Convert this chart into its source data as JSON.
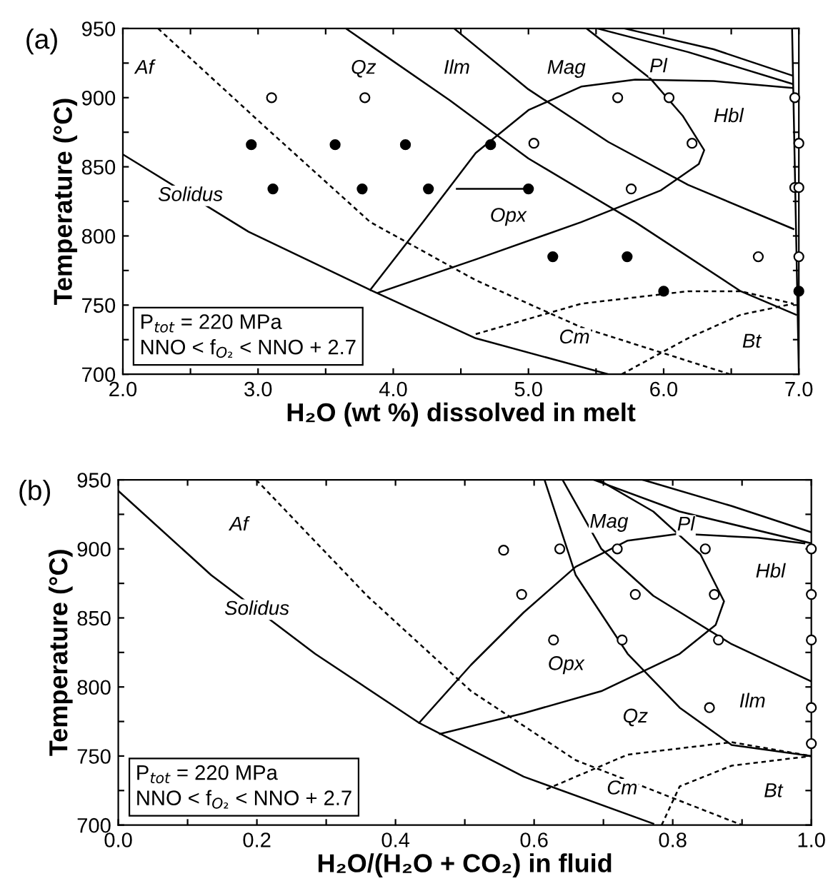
{
  "chart_data": [
    {
      "type": "line",
      "title": "(a)",
      "xlabel": "H₂O (wt %) dissolved in melt",
      "ylabel": "Temperature (°C)",
      "xlim": [
        2.0,
        7.0
      ],
      "xticks": [
        {
          "value": 2.0,
          "label": "2.0"
        },
        {
          "value": 2.5,
          "label": null
        },
        {
          "value": 3.0,
          "label": "3.0"
        },
        {
          "value": 3.5,
          "label": null
        },
        {
          "value": 4.0,
          "label": "4.0"
        },
        {
          "value": 4.5,
          "label": null
        },
        {
          "value": 5.0,
          "label": "5.0"
        },
        {
          "value": 5.5,
          "label": null
        },
        {
          "value": 6.0,
          "label": "6.0"
        },
        {
          "value": 6.5,
          "label": null
        },
        {
          "value": 7.0,
          "label": "7.0"
        }
      ],
      "ylim": [
        700,
        950
      ],
      "yticks": [
        700,
        {
          "value": 725,
          "label": null
        },
        750,
        {
          "value": 775,
          "label": null
        },
        800,
        {
          "value": 825,
          "label": null
        },
        850,
        {
          "value": 875,
          "label": null
        },
        900,
        {
          "value": 925,
          "label": null
        },
        950
      ],
      "grid": false,
      "series": [
        {
          "type": "line",
          "color": "#000000",
          "line_style": "solid",
          "x": [
            2.0,
            2.93,
            3.83,
            4.61,
            5.59
          ],
          "values": [
            859,
            803,
            761,
            726,
            700
          ]
        },
        {
          "type": "line",
          "color": "#000000",
          "line_style": "dashed",
          "x": [
            2.26,
            3.05,
            3.83,
            4.61,
            5.39,
            6.49
          ],
          "values": [
            950,
            879,
            810,
            768,
            734,
            700
          ]
        },
        {
          "type": "line",
          "color": "#000000",
          "line_style": "solid",
          "x": [
            3.65,
            4.42,
            5.0,
            5.79,
            6.57,
            6.98
          ],
          "values": [
            950,
            898,
            856,
            810,
            760,
            743
          ]
        },
        {
          "type": "line",
          "color": "#000000",
          "line_style": "solid",
          "x": [
            4.45,
            5.0,
            5.59,
            6.18,
            6.96
          ],
          "values": [
            950,
            906,
            868,
            837,
            805
          ]
        },
        {
          "type": "line",
          "color": "#000000",
          "line_style": "solid",
          "x": [
            3.83,
            4.22,
            4.61,
            5.0,
            5.39,
            5.79,
            6.37,
            6.95
          ],
          "values": [
            761,
            810,
            860,
            891,
            908,
            913,
            912,
            907
          ]
        },
        {
          "type": "line",
          "color": "#000000",
          "line_style": "solid",
          "x": [
            3.89,
            4.61,
            5.39,
            5.98,
            6.26,
            6.3,
            6.14,
            5.9,
            5.43
          ],
          "values": [
            759,
            783,
            810,
            833,
            852,
            862,
            887,
            914,
            950
          ]
        },
        {
          "type": "line",
          "color": "#000000",
          "line_style": "solid",
          "x": [
            5.51,
            6.18,
            6.95
          ],
          "values": [
            950,
            933,
            910
          ]
        },
        {
          "type": "line",
          "color": "#000000",
          "line_style": "solid",
          "x": [
            5.71,
            6.37,
            6.95
          ],
          "values": [
            950,
            935,
            916
          ]
        },
        {
          "type": "line",
          "color": "#000000",
          "line_style": "dashed",
          "x": [
            4.61,
            5.39,
            6.18,
            6.57,
            6.96
          ],
          "values": [
            729,
            751,
            760,
            760,
            751
          ]
        },
        {
          "type": "line",
          "color": "#000000",
          "line_style": "dashed",
          "x": [
            5.69,
            6.18,
            6.57,
            6.96
          ],
          "values": [
            700,
            726,
            743,
            751
          ]
        },
        {
          "type": "line",
          "color": "#000000",
          "line_style": "solid",
          "x": [
            6.95,
            7.0
          ],
          "values": [
            950,
            700
          ]
        },
        {
          "type": "line",
          "color": "#000000",
          "line_style": "solid",
          "x": [
            5.0,
            4.47
          ],
          "values": [
            834,
            834
          ]
        },
        {
          "type": "scatter",
          "color": "#ffffff",
          "marker": "circle",
          "x": [
            3.1,
            3.79,
            5.04,
            5.66,
            6.04,
            6.21,
            5.76,
            6.7,
            6.97,
            7.0,
            6.97,
            7.0,
            7.0
          ],
          "values": [
            900,
            900,
            867,
            900,
            900,
            867,
            834,
            785,
            900,
            867,
            835,
            835,
            785
          ]
        },
        {
          "type": "scatter",
          "color": "#000000",
          "marker": "circle",
          "x": [
            2.95,
            3.57,
            4.09,
            4.72,
            3.11,
            3.77,
            4.26,
            5.0,
            5.18,
            5.73,
            6.0,
            7.0
          ],
          "values": [
            866,
            866,
            866,
            866,
            834,
            834,
            834,
            834,
            785,
            785,
            760,
            760
          ]
        }
      ],
      "annotations": [
        "P$_{tot}$ = 220 MPa",
        "NNO < f$_{O₂}$ < NNO + 2.7",
        {
          "text": "Af",
          "x": 2.16,
          "y": 921
        },
        {
          "text": "Qz",
          "x": 3.78,
          "y": 921
        },
        {
          "text": "Ilm",
          "x": 4.47,
          "y": 921
        },
        {
          "text": "Mag",
          "x": 5.28,
          "y": 921
        },
        {
          "text": "Pl",
          "x": 5.96,
          "y": 922
        },
        {
          "text": "Hbl",
          "x": 6.48,
          "y": 886
        },
        {
          "text": "Opx",
          "x": 4.85,
          "y": 814
        },
        {
          "text": "Solidus",
          "x": 2.5,
          "y": 829
        },
        {
          "text": "Cm",
          "x": 5.34,
          "y": 726
        },
        {
          "text": "Bt",
          "x": 6.65,
          "y": 723
        }
      ]
    },
    {
      "type": "line",
      "title": "(b)",
      "xlabel": "H₂O/(H₂O + CO₂) in fluid",
      "ylabel": "Temperature (°C)",
      "xlim": [
        0.0,
        1.0
      ],
      "xticks": [
        {
          "value": 0.0,
          "label": "0.0"
        },
        {
          "value": 0.1,
          "label": null
        },
        {
          "value": 0.2,
          "label": "0.2"
        },
        {
          "value": 0.3,
          "label": null
        },
        {
          "value": 0.4,
          "label": "0.4"
        },
        {
          "value": 0.5,
          "label": null
        },
        {
          "value": 0.6,
          "label": "0.6"
        },
        {
          "value": 0.7,
          "label": null
        },
        {
          "value": 0.8,
          "label": "0.8"
        },
        {
          "value": 0.9,
          "label": null
        },
        {
          "value": 1.0,
          "label": "1.0"
        }
      ],
      "ylim": [
        700,
        950
      ],
      "yticks": [
        700,
        {
          "value": 725,
          "label": null
        },
        750,
        {
          "value": 775,
          "label": null
        },
        800,
        {
          "value": 825,
          "label": null
        },
        850,
        {
          "value": 875,
          "label": null
        },
        900,
        {
          "value": 925,
          "label": null
        },
        950
      ],
      "grid": false,
      "series": [
        {
          "type": "line",
          "color": "#000000",
          "line_style": "solid",
          "x": [
            0.0,
            0.134,
            0.284,
            0.434,
            0.585,
            0.772
          ],
          "values": [
            942,
            881,
            824,
            774,
            735,
            701
          ]
        },
        {
          "type": "line",
          "color": "#000000",
          "line_style": "dashed",
          "x": [
            0.199,
            0.359,
            0.509,
            0.66,
            0.9
          ],
          "values": [
            950,
            866,
            797,
            747,
            700
          ]
        },
        {
          "type": "line",
          "color": "#000000",
          "line_style": "solid",
          "x": [
            0.434,
            0.509,
            0.585,
            0.66,
            0.735,
            0.81,
            0.923,
            0.99
          ],
          "values": [
            774,
            816,
            854,
            887,
            906,
            911,
            908,
            904
          ]
        },
        {
          "type": "line",
          "color": "#000000",
          "line_style": "solid",
          "x": [
            0.464,
            0.585,
            0.697,
            0.81,
            0.862,
            0.874,
            0.84,
            0.772,
            0.693
          ],
          "values": [
            766,
            781,
            797,
            824,
            845,
            862,
            896,
            927,
            950
          ]
        },
        {
          "type": "line",
          "color": "#000000",
          "line_style": "solid",
          "x": [
            0.615,
            0.66,
            0.735,
            0.81,
            0.885,
            1.0
          ],
          "values": [
            950,
            881,
            824,
            785,
            758,
            750
          ]
        },
        {
          "type": "line",
          "color": "#000000",
          "line_style": "solid",
          "x": [
            0.641,
            0.697,
            0.772,
            0.885,
            1.0
          ],
          "values": [
            950,
            900,
            866,
            831,
            804
          ]
        },
        {
          "type": "line",
          "color": "#000000",
          "line_style": "solid",
          "x": [
            0.686,
            0.81,
            1.0
          ],
          "values": [
            950,
            927,
            904
          ]
        },
        {
          "type": "line",
          "color": "#000000",
          "line_style": "solid",
          "x": [
            0.757,
            0.885,
            1.0
          ],
          "values": [
            950,
            931,
            912
          ]
        },
        {
          "type": "line",
          "color": "#000000",
          "line_style": "dashed",
          "x": [
            0.618,
            0.735,
            0.885,
            1.0
          ],
          "values": [
            726,
            751,
            760,
            750
          ]
        },
        {
          "type": "line",
          "color": "#000000",
          "line_style": "dashed",
          "x": [
            0.784,
            0.81,
            0.885,
            1.0
          ],
          "values": [
            700,
            728,
            743,
            750
          ]
        },
        {
          "type": "scatter",
          "color": "#ffffff",
          "marker": "circle",
          "x": [
            0.556,
            0.637,
            0.72,
            0.847,
            1.0,
            0.582,
            0.746,
            0.86,
            1.0,
            0.628,
            0.727,
            0.866,
            1.0,
            0.853,
            1.0,
            1.0
          ],
          "values": [
            899,
            900,
            900,
            900,
            900,
            867,
            867,
            867,
            867,
            834,
            834,
            834,
            834,
            785,
            785,
            759
          ]
        }
      ],
      "annotations": [
        "P$_{tot}$ = 220 MPa",
        "NNO < f$_{O₂}$ < NNO + 2.7",
        {
          "text": "Af",
          "x": 0.174,
          "y": 917
        },
        {
          "text": "Mag",
          "x": 0.708,
          "y": 919
        },
        {
          "text": "Pl",
          "x": 0.819,
          "y": 917
        },
        {
          "text": "Hbl",
          "x": 0.941,
          "y": 883
        },
        {
          "text": "Solidus",
          "x": 0.2,
          "y": 856
        },
        {
          "text": "Opx",
          "x": 0.646,
          "y": 816
        },
        {
          "text": "Qz",
          "x": 0.746,
          "y": 778
        },
        {
          "text": "Ilm",
          "x": 0.915,
          "y": 789
        },
        {
          "text": "Cm",
          "x": 0.727,
          "y": 726
        },
        {
          "text": "Bt",
          "x": 0.945,
          "y": 724
        }
      ]
    }
  ]
}
